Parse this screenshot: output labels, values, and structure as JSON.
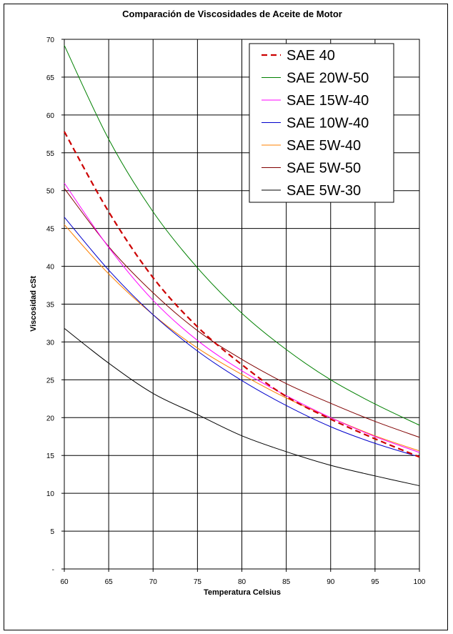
{
  "chart_data": {
    "type": "line",
    "title": "Comparación de Viscosidades de Aceite de Motor",
    "xlabel": "Temperatura Celsius",
    "ylabel": "Viscosidad cSt",
    "xlim": [
      60,
      100
    ],
    "ylim": [
      0,
      70
    ],
    "x_ticks": [
      "60",
      "65",
      "70",
      "75",
      "80",
      "85",
      "90",
      "95",
      "100"
    ],
    "y_ticks": [
      "-",
      "5",
      "10",
      "15",
      "20",
      "25",
      "30",
      "35",
      "40",
      "45",
      "50",
      "55",
      "60",
      "65",
      "70"
    ],
    "grid": true,
    "legend_position": "top-right",
    "x": [
      60,
      65,
      70,
      75,
      80,
      85,
      90,
      95,
      100
    ],
    "series": [
      {
        "name": "SAE 40",
        "color": "#cc0000",
        "style": "dashed",
        "values": [
          57.8,
          47.2,
          38.5,
          32.0,
          27.0,
          22.8,
          19.8,
          17.2,
          14.8
        ]
      },
      {
        "name": "SAE 20W-50",
        "color": "#008000",
        "style": "solid",
        "values": [
          69.2,
          56.8,
          47.2,
          39.8,
          33.8,
          29.0,
          25.0,
          21.8,
          19.0
        ]
      },
      {
        "name": "SAE 15W-40",
        "color": "#ff00ff",
        "style": "solid",
        "values": [
          51.0,
          42.5,
          35.5,
          30.2,
          26.2,
          22.9,
          20.0,
          17.5,
          15.4
        ]
      },
      {
        "name": "SAE 10W-40",
        "color": "#0000cc",
        "style": "solid",
        "values": [
          46.5,
          39.5,
          33.6,
          28.8,
          24.9,
          21.6,
          18.8,
          16.6,
          14.8
        ]
      },
      {
        "name": "SAE 5W-40",
        "color": "#ff8000",
        "style": "solid",
        "values": [
          45.5,
          39.0,
          33.6,
          29.2,
          25.7,
          22.6,
          20.0,
          17.6,
          15.6
        ]
      },
      {
        "name": "SAE 5W-50",
        "color": "#800000",
        "style": "solid",
        "values": [
          50.3,
          42.6,
          36.5,
          31.5,
          27.7,
          24.5,
          21.9,
          19.5,
          17.4
        ]
      },
      {
        "name": "SAE 5W-30",
        "color": "#000000",
        "style": "solid",
        "values": [
          31.8,
          27.2,
          23.2,
          20.4,
          17.6,
          15.5,
          13.7,
          12.3,
          11.0
        ]
      }
    ]
  }
}
